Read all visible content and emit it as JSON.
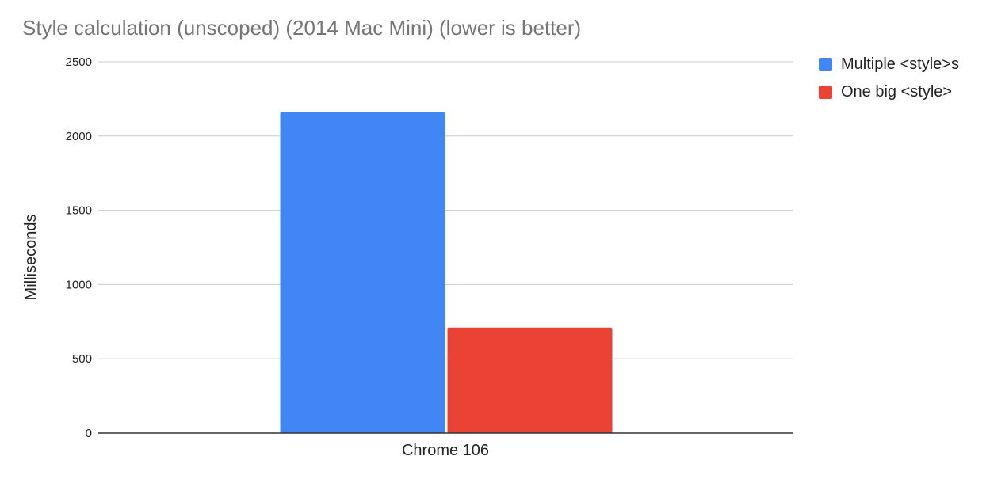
{
  "chart_data": {
    "type": "bar",
    "title": "Style calculation (unscoped) (2014 Mac Mini) (lower is better)",
    "xlabel": "",
    "ylabel": "Milliseconds",
    "categories": [
      "Chrome 106"
    ],
    "series": [
      {
        "name": "Multiple <style>s",
        "values": [
          2160
        ],
        "color": "#4285f4"
      },
      {
        "name": "One big <style>",
        "values": [
          710
        ],
        "color": "#ea4335"
      }
    ],
    "ylim": [
      0,
      2500
    ],
    "yticks": [
      0,
      500,
      1000,
      1500,
      2000,
      2500
    ],
    "grid": true,
    "legend_position": "right"
  }
}
